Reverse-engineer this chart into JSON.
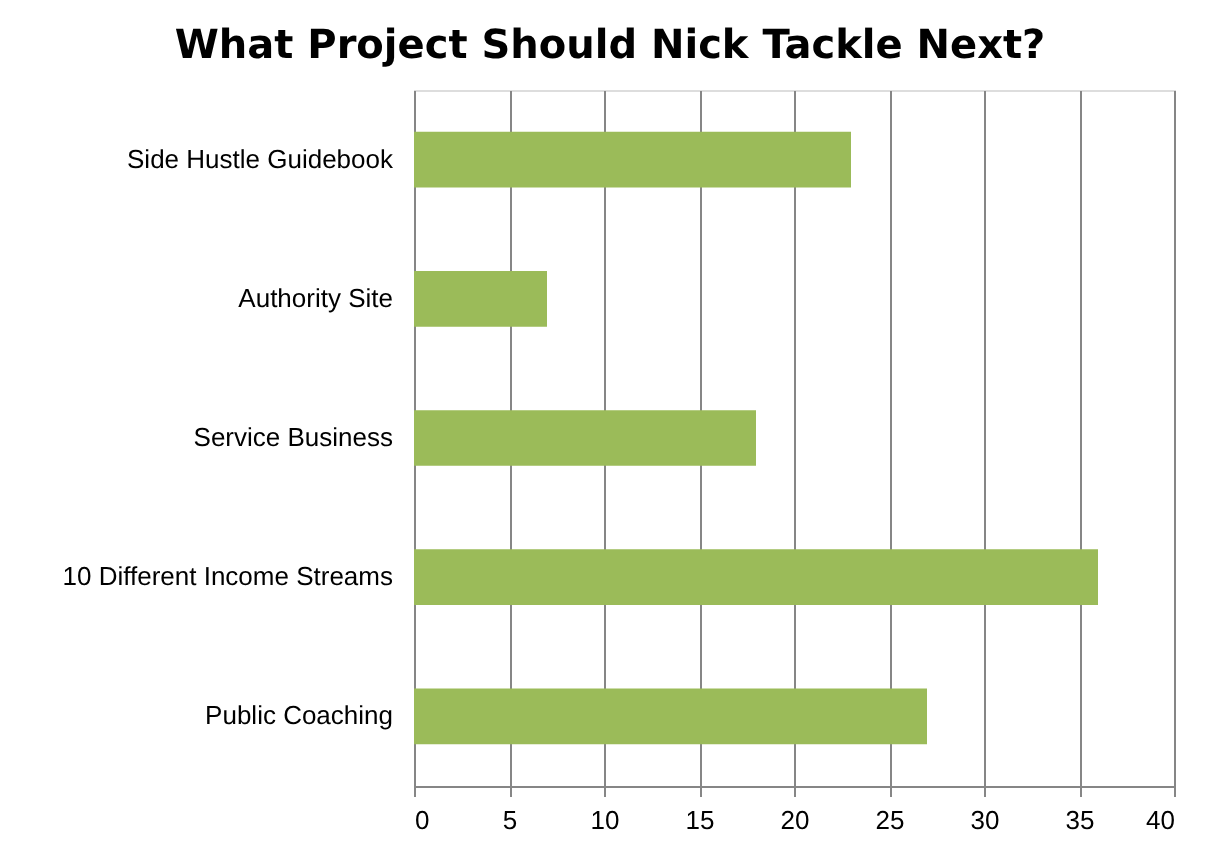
{
  "chart_data": {
    "type": "bar",
    "orientation": "horizontal",
    "title": "What Project Should Nick Tackle Next?",
    "categories": [
      "Side Hustle Guidebook",
      "Authority Site",
      "Service Business",
      "10 Different Income Streams",
      "Public Coaching"
    ],
    "values": [
      23,
      7,
      18,
      36,
      27
    ],
    "color": "#9bbb59",
    "xlim": [
      0,
      40
    ],
    "xticks": [
      0,
      5,
      10,
      15,
      20,
      25,
      30,
      35,
      40
    ],
    "grid": "x"
  }
}
